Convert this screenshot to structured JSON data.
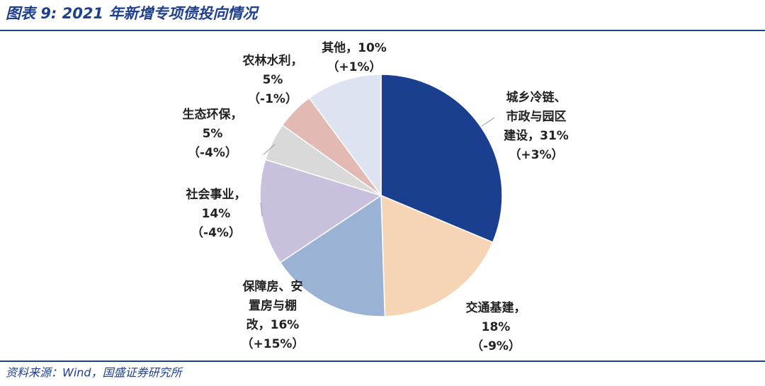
{
  "title": "图表 9:  2021 年新增专项债投向情况",
  "source": "资料来源：Wind，国盛证券研究所",
  "chart_data": {
    "type": "pie",
    "labels": [
      [
        "城乡冷链、",
        "市政与园区",
        "建设，31%"
      ],
      [
        "交通基建，",
        "18%"
      ],
      [
        "保障房、安",
        "置房与棚",
        "改，16%"
      ],
      [
        "社会事业，",
        "14%"
      ],
      [
        "生态环保，",
        "5%"
      ],
      [
        "农林水利，",
        "5%"
      ],
      [
        "其他，10%"
      ]
    ],
    "values": [
      31,
      18,
      16,
      14,
      5,
      5,
      10
    ],
    "colors": [
      "#1a3f8f",
      "#f5d5b5",
      "#9ab3d5",
      "#c9c0dd",
      "#d9d9d9",
      "#e3b9b3",
      "#dde3f0"
    ],
    "changes": [
      3,
      -9,
      15,
      -4,
      -4,
      -1,
      1
    ],
    "change_labels": [
      "（+3%）",
      "（-9%）",
      "（+15%）",
      "（-4%）",
      "（-4%）",
      "（-1%）",
      "（+1%）"
    ]
  }
}
